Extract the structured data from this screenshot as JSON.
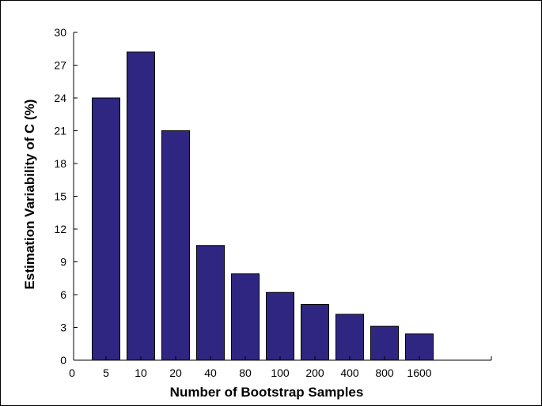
{
  "chart_data": {
    "type": "bar",
    "categories": [
      "5",
      "10",
      "20",
      "40",
      "80",
      "100",
      "200",
      "400",
      "800",
      "1600"
    ],
    "values": [
      24.0,
      28.2,
      21.0,
      10.5,
      7.9,
      6.2,
      5.1,
      4.2,
      3.1,
      2.4
    ],
    "x_origin_label": "0",
    "xlabel": "Number of Bootstrap Samples",
    "ylabel": "Estimation Variability of C (%)",
    "ylim": [
      0,
      30
    ],
    "yticks": [
      0,
      3,
      6,
      9,
      12,
      15,
      18,
      21,
      24,
      27,
      30
    ],
    "grid": false,
    "colors": {
      "bar": "#2e2680",
      "bar_edge": "#000000",
      "axis": "#000000"
    }
  }
}
